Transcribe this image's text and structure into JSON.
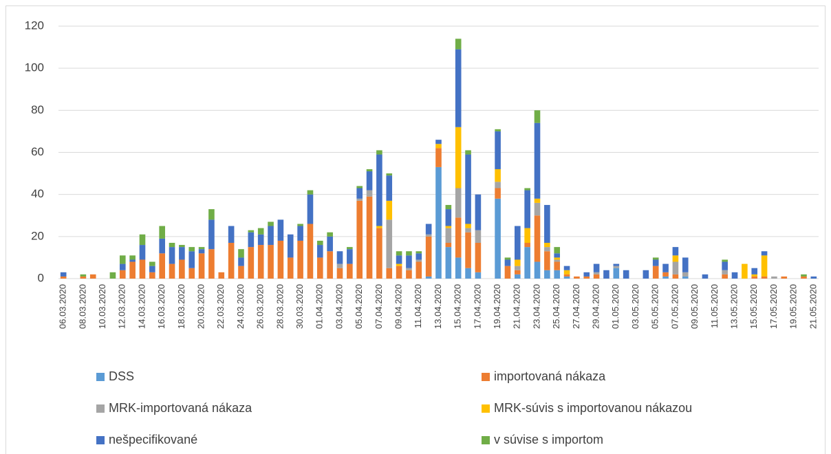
{
  "chart_data": {
    "type": "stacked_bar",
    "categories": [
      "06.03.2020",
      null,
      "08.03.2020",
      null,
      "10.03.2020",
      null,
      "12.03.2020",
      null,
      "14.03.2020",
      null,
      "16.03.2020",
      null,
      "18.03.2020",
      null,
      "20.03.2020",
      null,
      "22.03.2020",
      null,
      "24.03.2020",
      null,
      "26.03.2020",
      null,
      "28.03.2020",
      null,
      "30.03.2020",
      null,
      "01.04.2020",
      null,
      "03.04.2020",
      null,
      "05.04.2020",
      null,
      "07.04.2020",
      null,
      "09.04.2020",
      null,
      "11.04.2020",
      null,
      "13.04.2020",
      null,
      "15.04.2020",
      null,
      "17.04.2020",
      null,
      "19.04.2020",
      null,
      "21.04.2020",
      null,
      "23.04.2020",
      null,
      "25.04.2020",
      null,
      "27.04.2020",
      null,
      "29.04.2020",
      null,
      "01.05.2020",
      null,
      "03.05.2020",
      null,
      "05.05.2020",
      null,
      "07.05.2020",
      null,
      "09.05.2020",
      null,
      "11.05.2020",
      null,
      "13.05.2020",
      null,
      "15.05.2020",
      null,
      "17.05.2020",
      null,
      "19.05.2020",
      null,
      "21.05.2020"
    ],
    "series": [
      {
        "name": "DSS",
        "color": "#5b9bd5",
        "values": [
          0,
          0,
          0,
          0,
          0,
          0,
          0,
          0,
          0,
          0,
          0,
          0,
          0,
          0,
          0,
          0,
          0,
          0,
          0,
          0,
          0,
          0,
          0,
          0,
          0,
          0,
          0,
          0,
          0,
          0,
          0,
          0,
          0,
          0,
          0,
          0,
          0,
          1,
          53,
          15,
          10,
          5,
          3,
          0,
          38,
          0,
          2,
          15,
          8,
          4,
          4,
          1,
          0,
          0,
          0,
          0,
          5,
          0,
          0,
          0,
          0,
          1,
          0,
          1,
          0,
          0,
          0,
          0,
          0,
          0,
          0,
          0,
          0,
          0,
          0,
          0,
          0
        ]
      },
      {
        "name": "importovaná nákaza",
        "color": "#ed7d31",
        "values": [
          1,
          0,
          1,
          2,
          0,
          0,
          4,
          8,
          9,
          3,
          12,
          7,
          9,
          5,
          12,
          14,
          3,
          17,
          6,
          15,
          16,
          16,
          18,
          10,
          18,
          26,
          10,
          13,
          5,
          7,
          37,
          39,
          24,
          5,
          6,
          4,
          8,
          19,
          9,
          2,
          19,
          17,
          14,
          0,
          5,
          6,
          2,
          2,
          22,
          9,
          4,
          1,
          1,
          1,
          2,
          0,
          0,
          0,
          0,
          0,
          6,
          2,
          2,
          0,
          0,
          0,
          0,
          2,
          0,
          0,
          1,
          1,
          0,
          1,
          0,
          1,
          0
        ]
      },
      {
        "name": "MRK-importovaná nákaza",
        "color": "#a5a5a5",
        "values": [
          0,
          0,
          0,
          0,
          0,
          0,
          0,
          0,
          0,
          0,
          0,
          0,
          0,
          0,
          0,
          0,
          0,
          0,
          0,
          0,
          0,
          0,
          0,
          0,
          0,
          0,
          0,
          0,
          2,
          0,
          1,
          3,
          0,
          23,
          0,
          1,
          1,
          1,
          0,
          7,
          14,
          2,
          6,
          0,
          3,
          0,
          2,
          0,
          6,
          2,
          1,
          0,
          0,
          0,
          1,
          0,
          1,
          0,
          0,
          0,
          0,
          0,
          6,
          2,
          0,
          0,
          0,
          2,
          0,
          0,
          0,
          0,
          1,
          0,
          0,
          0,
          0
        ]
      },
      {
        "name": "MRK-súvis s importovanou nákazou",
        "color": "#ffc000",
        "values": [
          0,
          0,
          0,
          0,
          0,
          0,
          0,
          0,
          0,
          0,
          0,
          0,
          0,
          0,
          0,
          0,
          0,
          0,
          0,
          0,
          0,
          0,
          0,
          0,
          0,
          0,
          0,
          0,
          0,
          0,
          0,
          0,
          1,
          9,
          1,
          0,
          0,
          0,
          2,
          1,
          29,
          2,
          0,
          0,
          6,
          0,
          3,
          7,
          2,
          2,
          1,
          2,
          0,
          0,
          0,
          0,
          0,
          0,
          0,
          0,
          0,
          0,
          3,
          0,
          0,
          0,
          0,
          0,
          0,
          7,
          1,
          10,
          0,
          0,
          0,
          0,
          0
        ]
      },
      {
        "name": "nešpecifikované",
        "color": "#4472c4",
        "values": [
          2,
          0,
          0,
          0,
          0,
          0,
          3,
          1,
          7,
          3,
          7,
          8,
          6,
          8,
          2,
          14,
          0,
          8,
          4,
          7,
          5,
          9,
          10,
          11,
          7,
          14,
          6,
          7,
          6,
          7,
          5,
          9,
          34,
          12,
          4,
          6,
          3,
          5,
          2,
          8,
          37,
          33,
          17,
          0,
          18,
          3,
          16,
          18,
          36,
          18,
          2,
          2,
          0,
          2,
          4,
          4,
          1,
          4,
          0,
          4,
          3,
          4,
          4,
          7,
          0,
          2,
          0,
          4,
          3,
          0,
          3,
          2,
          0,
          0,
          0,
          0,
          1
        ]
      },
      {
        "name": "v súvise s importom",
        "color": "#70ad47",
        "values": [
          0,
          0,
          1,
          0,
          0,
          3,
          4,
          2,
          5,
          2,
          6,
          2,
          1,
          2,
          1,
          5,
          0,
          0,
          4,
          1,
          3,
          2,
          0,
          0,
          1,
          2,
          2,
          2,
          0,
          1,
          1,
          1,
          2,
          1,
          2,
          2,
          1,
          0,
          0,
          2,
          5,
          2,
          0,
          0,
          1,
          1,
          0,
          1,
          6,
          0,
          3,
          0,
          0,
          0,
          0,
          0,
          0,
          0,
          0,
          0,
          1,
          0,
          0,
          0,
          0,
          0,
          0,
          1,
          0,
          0,
          0,
          0,
          0,
          0,
          0,
          1,
          0
        ]
      }
    ],
    "ylim": [
      0,
      120
    ],
    "yticks": [
      0,
      20,
      40,
      60,
      80,
      100,
      120
    ],
    "grid": true,
    "legend": "bottom"
  }
}
